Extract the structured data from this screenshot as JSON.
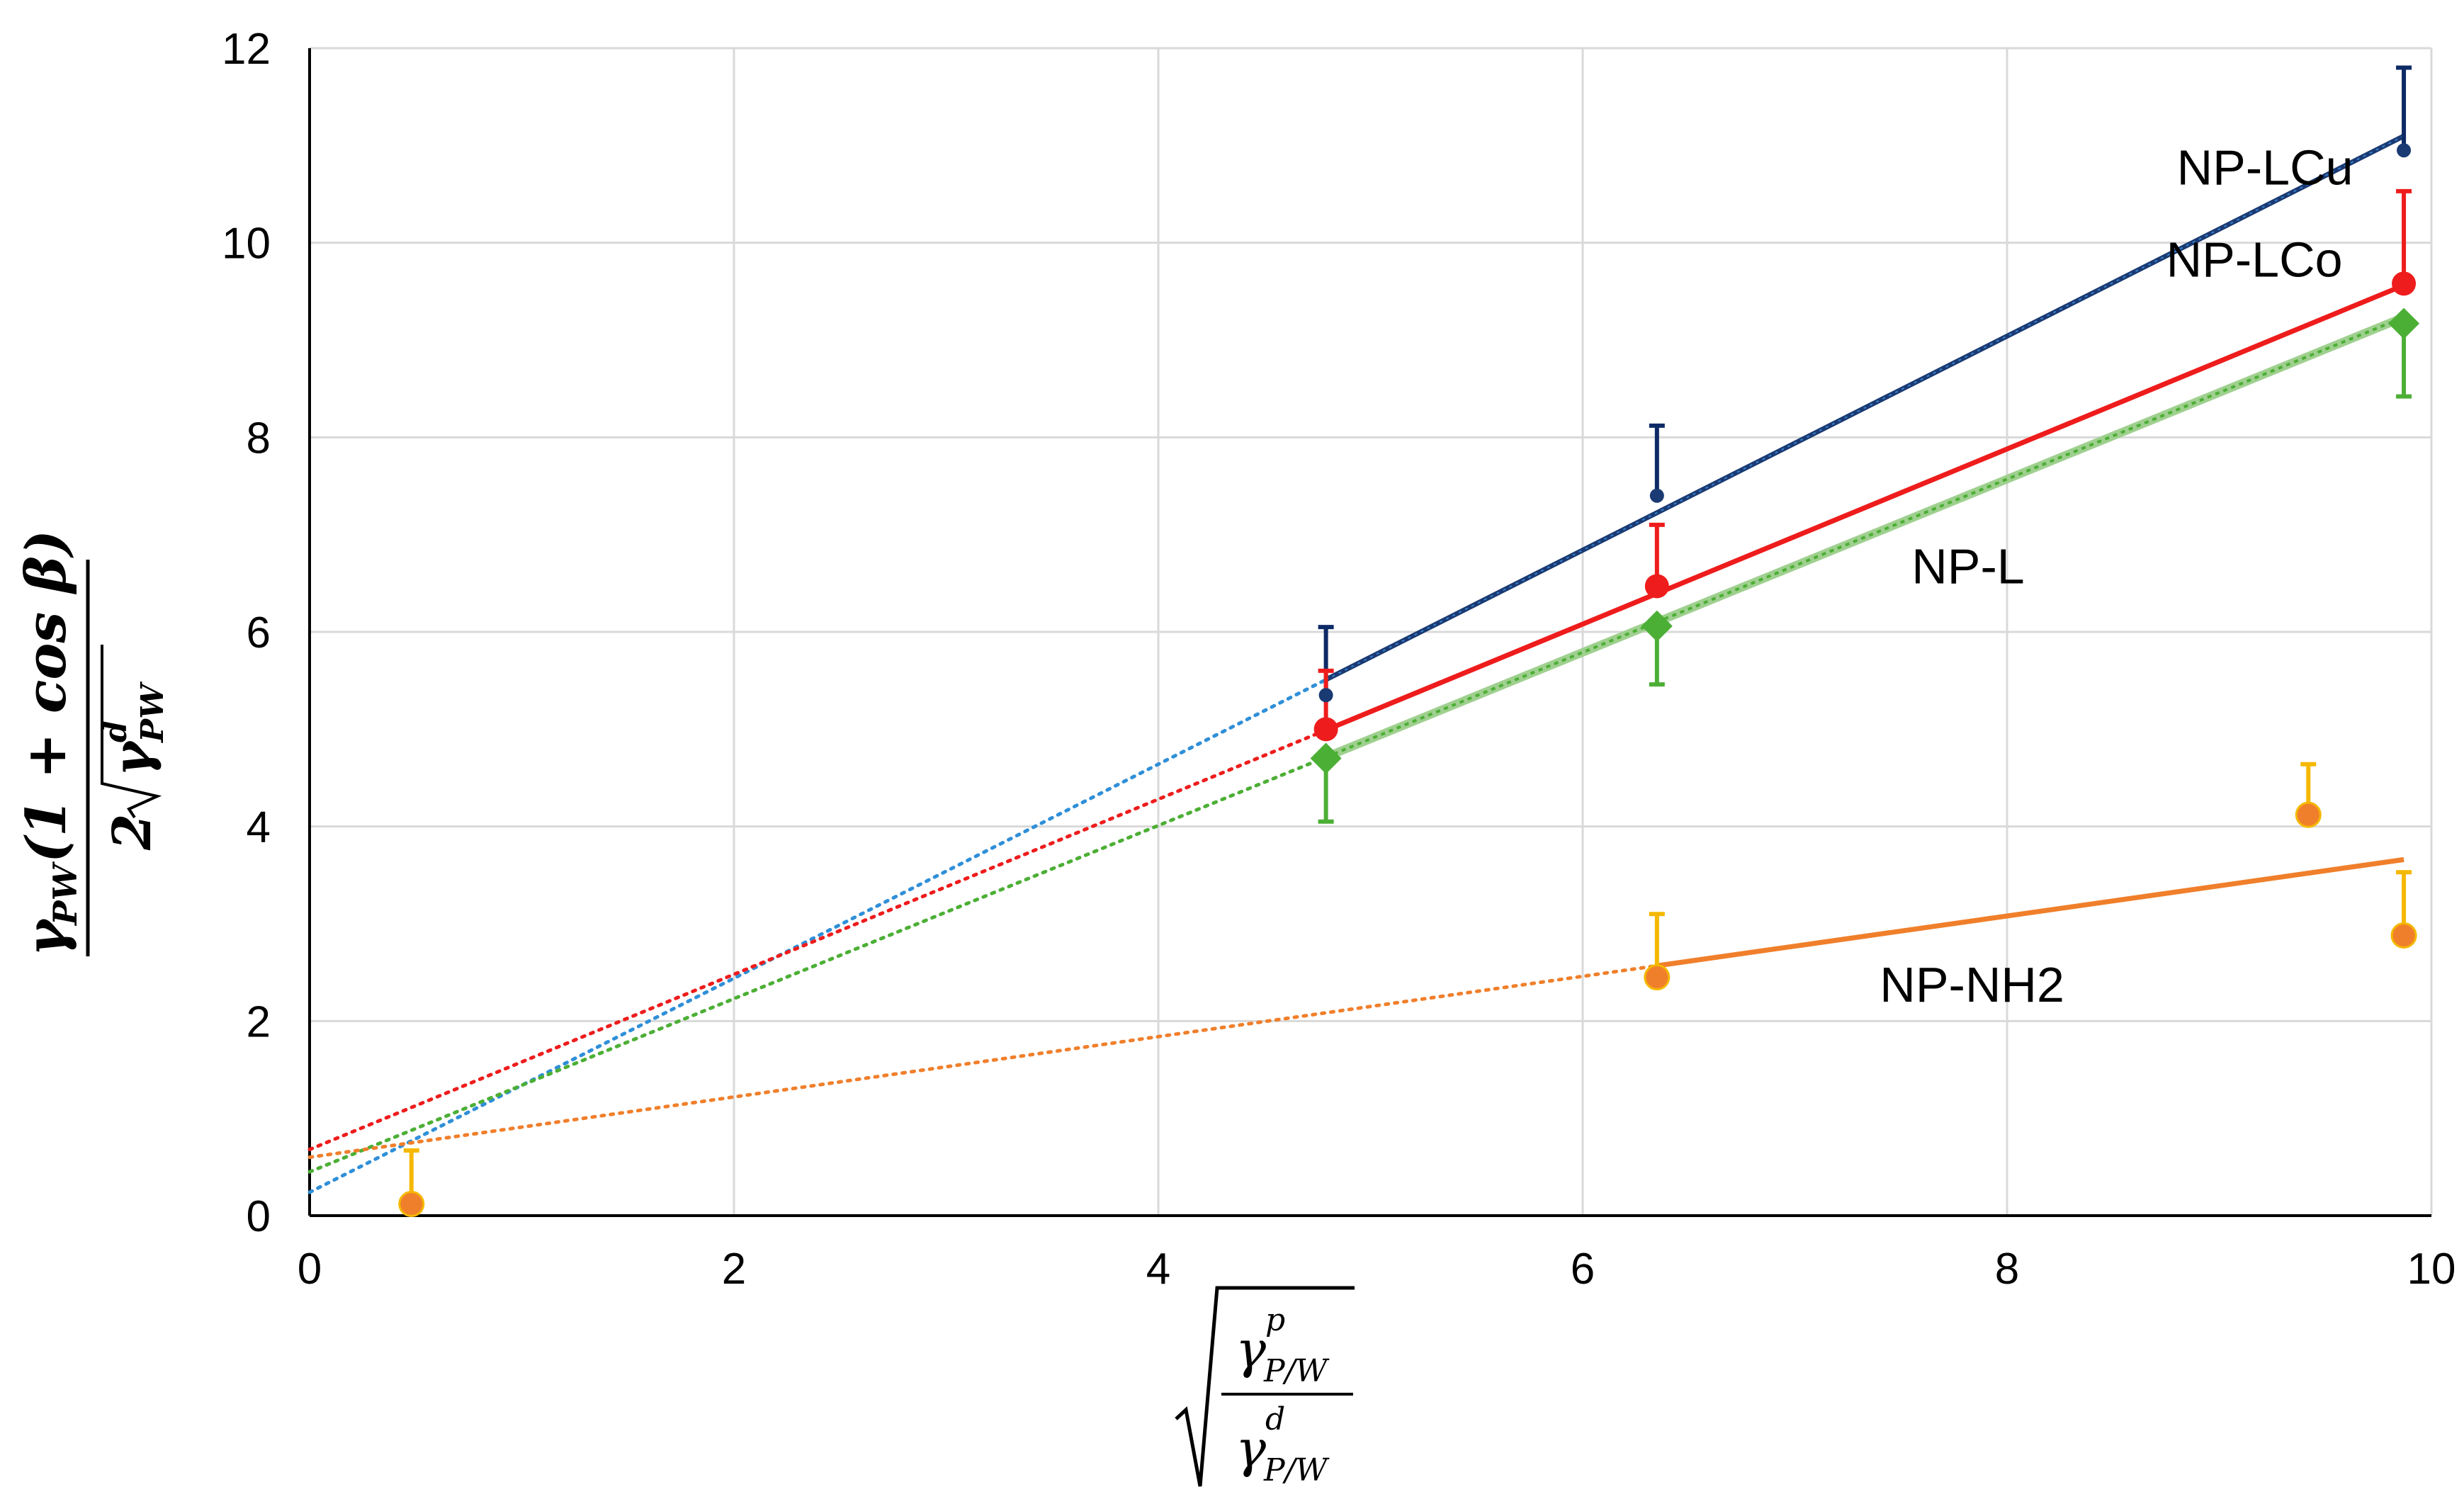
{
  "chart_data": {
    "type": "scatter",
    "title": "",
    "xlabel": "√(γ^p_P/W / γ^d_P/W)",
    "ylabel": "γ_PW(1 + cos β) / 2√(γ^d_PW)",
    "xlim": [
      0,
      10
    ],
    "ylim": [
      0,
      12
    ],
    "xticks": [
      "0",
      "2",
      "4",
      "6",
      "8",
      "10"
    ],
    "yticks": [
      "0",
      "2",
      "4",
      "6",
      "8",
      "10",
      "12"
    ],
    "grid": true,
    "xlabel_parts": {
      "gamma": "γ",
      "sup_p": "p",
      "sup_d": "d",
      "sub": "P/W"
    },
    "ylabel_parts": {
      "gamma": "γ",
      "sub": "PW",
      "num_rest": "(1 + cos β)",
      "den_two": "2",
      "sup_d": "d"
    },
    "series": [
      {
        "name": "NP-LCu",
        "label": "NP-LCu",
        "label_at": [
          8.8,
          10.6
        ],
        "color": "#1a3a73",
        "err_color": "#0d2a66",
        "marker": "circle-small",
        "x": [
          4.79,
          6.35,
          9.87
        ],
        "y": [
          5.35,
          7.4,
          10.95
        ],
        "err_up": [
          0.7,
          0.72,
          0.85
        ],
        "fit": {
          "slope": 1.1,
          "intercept": 0.24,
          "fit_x": [
            4.79,
            9.87
          ],
          "dotted_color": "#2f8fd8"
        }
      },
      {
        "name": "NP-LCo",
        "label": "NP-LCo",
        "label_at": [
          8.75,
          9.65
        ],
        "color": "#ee1c1c",
        "err_color": "#ee1c1c",
        "marker": "circle",
        "x": [
          4.79,
          6.35,
          9.87
        ],
        "y": [
          5.0,
          6.47,
          9.58
        ],
        "err_up": [
          0.6,
          0.63,
          0.95
        ],
        "fit": {
          "slope": 0.9,
          "intercept": 0.68,
          "fit_x": [
            4.79,
            9.87
          ],
          "dotted_color": "#ee1c1c"
        }
      },
      {
        "name": "NP-L",
        "label": "NP-L",
        "label_at": [
          7.55,
          6.5
        ],
        "color": "#4caf35",
        "err_color": "#4caf35",
        "marker": "diamond",
        "x": [
          4.79,
          6.35,
          9.87
        ],
        "y": [
          4.7,
          6.06,
          9.17
        ],
        "err_down": [
          0.65,
          0.6,
          0.75
        ],
        "fit": {
          "slope": 0.89,
          "intercept": 0.45,
          "fit_x": [
            4.79,
            9.87
          ],
          "dotted_color": "#4caf35"
        }
      },
      {
        "name": "NP-NH2",
        "label": "NP-NH2",
        "label_at": [
          7.4,
          2.2
        ],
        "color": "#f07f2b",
        "err_color": "#f5b800",
        "marker": "circle-orange",
        "x": [
          0.48,
          6.35,
          9.42,
          9.87
        ],
        "y": [
          0.12,
          2.45,
          4.12,
          2.88
        ],
        "err_up": [
          0.55,
          0.65,
          0.52,
          0.65
        ],
        "fit": {
          "slope": 0.31,
          "intercept": 0.6,
          "fit_x": [
            6.35,
            9.87
          ],
          "dotted_color": "#f07f2b"
        }
      }
    ]
  }
}
